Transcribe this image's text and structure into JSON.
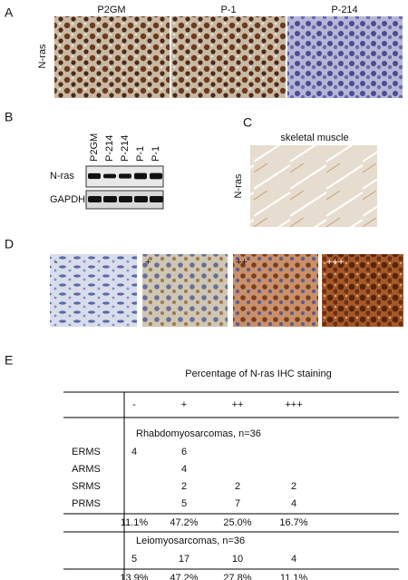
{
  "panels": {
    "a": {
      "label": "A",
      "row_label": "N-ras",
      "titles": [
        "P2GM",
        "P-1",
        "P-214"
      ]
    },
    "b": {
      "label": "B",
      "lanes": [
        "P2GM",
        "P-214",
        "P-214",
        "P-1",
        "P-1"
      ],
      "rows": [
        "N-ras",
        "GAPDH"
      ]
    },
    "c": {
      "label": "C",
      "title": "skeletal muscle",
      "row_label": "N-ras"
    },
    "d": {
      "label": "D",
      "marks": [
        "-",
        "+",
        "++",
        "+++"
      ]
    },
    "e": {
      "label": "E",
      "table": {
        "title": "Percentage of N-ras IHC staining",
        "header": [
          "-",
          "+",
          "++",
          "+++"
        ],
        "sections": [
          {
            "name": "Rhabdomyosarcomas,  n=36",
            "rows": [
              [
                "ERMS",
                "4",
                "6",
                null,
                null
              ],
              [
                "ARMS",
                null,
                "4",
                null,
                null
              ],
              [
                "SRMS",
                null,
                "2",
                "2",
                "2"
              ],
              [
                "PRMS",
                null,
                "5",
                "7",
                "4"
              ]
            ],
            "totals": [
              "11.1%",
              "47.2%",
              "25.0%",
              "16.7%"
            ]
          },
          {
            "name": "Leiomyosarcomas,  n=36",
            "rows": [
              [
                null,
                "5",
                "17",
                "10",
                "4"
              ]
            ],
            "totals": [
              "13.9%",
              "47.2%",
              "27.8%",
              "11.1%"
            ]
          }
        ]
      }
    }
  }
}
